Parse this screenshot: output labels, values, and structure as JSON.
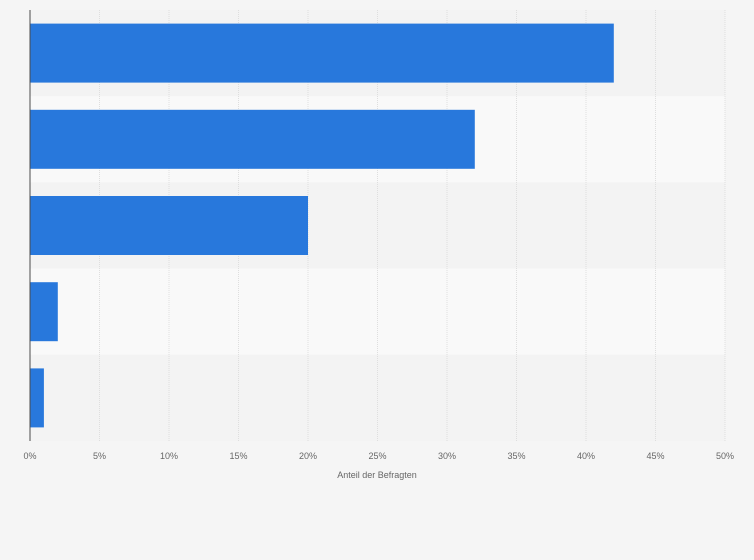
{
  "chart_data": {
    "type": "bar",
    "orientation": "horizontal",
    "categories": [
      "",
      "",
      "",
      "",
      ""
    ],
    "values": [
      42,
      32,
      20,
      2,
      1
    ],
    "xlim": [
      0,
      50
    ],
    "xticks": [
      0,
      5,
      10,
      15,
      20,
      25,
      30,
      35,
      40,
      45,
      50
    ],
    "tick_labels": [
      "0%",
      "5%",
      "10%",
      "15%",
      "20%",
      "25%",
      "30%",
      "35%",
      "40%",
      "45%",
      "50%"
    ],
    "xlabel": "Anteil der Befragten",
    "ylabel": "",
    "grid": true,
    "colors": {
      "bar": "#2878dc",
      "band_light": "#f9f9f9",
      "band_dark": "#f3f3f3",
      "grid": "#dedede",
      "axis": "#4a4a4a",
      "text": "#666666"
    }
  }
}
